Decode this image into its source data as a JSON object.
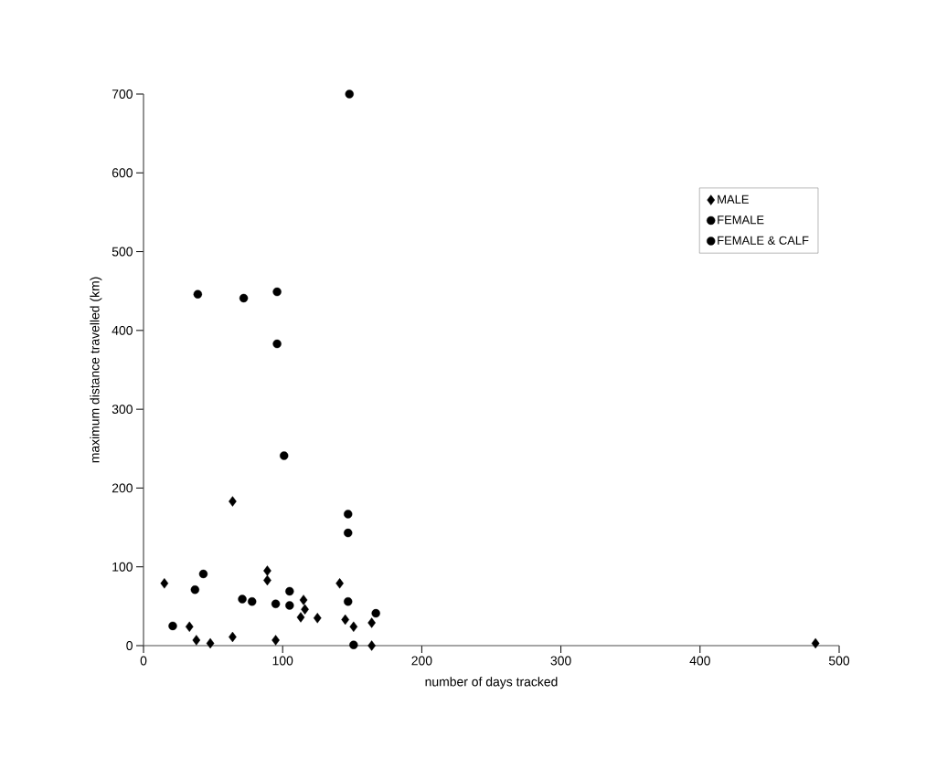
{
  "chart_data": {
    "type": "scatter",
    "xlabel": "number of days tracked",
    "ylabel": "maximum distance travelled (km)",
    "xlim": [
      0,
      500
    ],
    "xticks": [
      0,
      100,
      200,
      300,
      400,
      500
    ],
    "ylim": [
      0,
      700
    ],
    "yticks": [
      0,
      100,
      200,
      300,
      400,
      500,
      600,
      700
    ],
    "legend": "top right",
    "grid": false,
    "series": [
      {
        "name": "MALE",
        "color": "#000000",
        "marker": "diamond",
        "x": [
          15,
          33,
          38,
          48,
          64,
          64,
          89,
          89,
          95,
          115,
          113,
          116,
          125,
          141,
          145,
          151,
          164,
          164,
          483
        ],
        "values": [
          79,
          24,
          7,
          3,
          11,
          183,
          95,
          83,
          7,
          58,
          36,
          46,
          35,
          79,
          33,
          24,
          29,
          0,
          3
        ]
      },
      {
        "name": "FEMALE",
        "color": "#000000",
        "marker": "circle",
        "x": [
          37,
          43,
          71,
          78,
          95,
          105,
          105,
          147,
          147,
          147,
          148,
          39,
          72,
          96,
          96
        ],
        "values": [
          71,
          91,
          59,
          56,
          53,
          69,
          51,
          143,
          167,
          56,
          700,
          446,
          441,
          449,
          383
        ]
      },
      {
        "name": "FEMALE & CALF",
        "color": "#000000",
        "marker": "circle",
        "x": [
          21,
          151,
          167,
          101
        ],
        "values": [
          25,
          1,
          41,
          241
        ]
      }
    ]
  }
}
